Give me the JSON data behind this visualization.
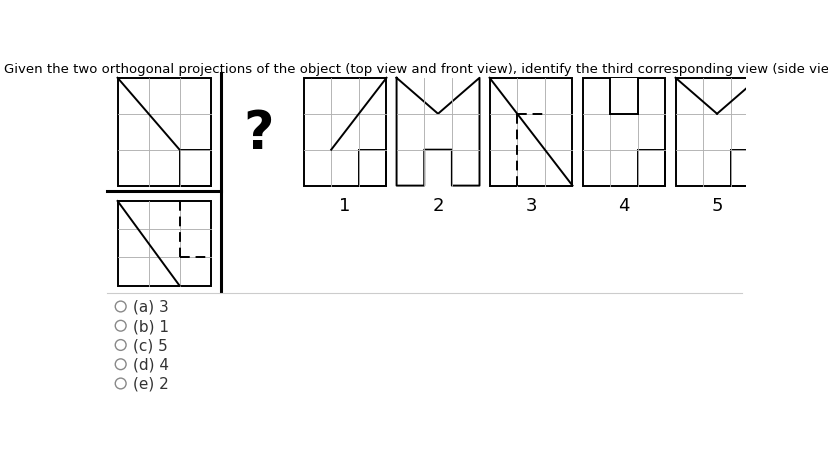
{
  "title": "Given the two orthogonal projections of the object (top view and front view), identify the third corresponding view (side view)",
  "title_fontsize": 9.5,
  "bg_color": "#ffffff",
  "options": [
    "(a) 3",
    "(b) 1",
    "(c) 5",
    "(d) 4",
    "(e) 2"
  ],
  "line_color": "#000000",
  "grid_color": "#b0b0b0",
  "lw": 1.4,
  "thin_lw": 0.65,
  "divider_lw": 2.2
}
